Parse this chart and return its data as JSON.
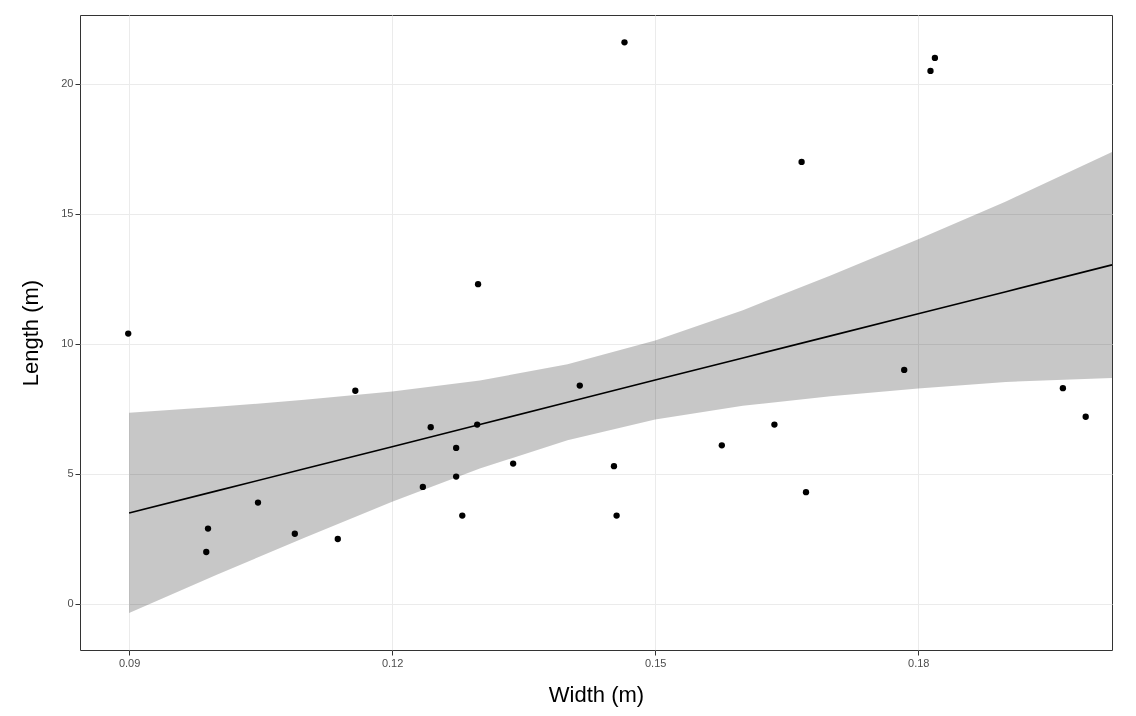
{
  "chart_data": {
    "type": "scatter",
    "xlabel": "Width (m)",
    "ylabel": "Length (m)",
    "xlim": [
      0.0844,
      0.2021
    ],
    "ylim": [
      -1.77,
      22.65
    ],
    "xticks": [
      0.09,
      0.12,
      0.15,
      0.18
    ],
    "yticks": [
      0,
      5,
      10,
      15,
      20
    ],
    "grid": true,
    "marker": "circle",
    "series": [
      {
        "color": "#000000",
        "x": [
          0.0899,
          0.0988,
          0.099,
          0.1047,
          0.1089,
          0.1138,
          0.1158,
          0.1235,
          0.1244,
          0.1273,
          0.1273,
          0.128,
          0.1297,
          0.1298,
          0.1338,
          0.1414,
          0.1453,
          0.1456,
          0.1465,
          0.1576,
          0.1636,
          0.1667,
          0.1672,
          0.1784,
          0.1814,
          0.1819,
          0.1965,
          0.1991
        ],
        "values": [
          10.4,
          2.0,
          2.9,
          3.9,
          2.7,
          2.5,
          8.2,
          4.5,
          6.8,
          6.0,
          4.9,
          3.4,
          6.9,
          12.3,
          5.4,
          8.4,
          5.3,
          3.4,
          21.6,
          6.1,
          6.9,
          17.0,
          4.3,
          9.0,
          20.5,
          21.0,
          8.3,
          7.2
        ]
      },
      {
        "type": "line",
        "marker": "none",
        "color": "#000000",
        "x": [
          0.09,
          0.1,
          0.11,
          0.12,
          0.13,
          0.14,
          0.15,
          0.16,
          0.17,
          0.18,
          0.19,
          0.2021
        ],
        "values": [
          3.5,
          4.35,
          5.2,
          6.05,
          6.9,
          7.76,
          8.61,
          9.46,
          10.31,
          11.16,
          12.01,
          13.04
        ],
        "lower": [
          -0.35,
          1.12,
          2.55,
          3.93,
          5.21,
          6.3,
          7.09,
          7.62,
          7.99,
          8.29,
          8.54,
          8.69
        ],
        "upper": [
          7.35,
          7.58,
          7.85,
          8.17,
          8.59,
          9.22,
          10.13,
          11.3,
          12.63,
          14.03,
          15.48,
          17.38
        ]
      }
    ]
  }
}
